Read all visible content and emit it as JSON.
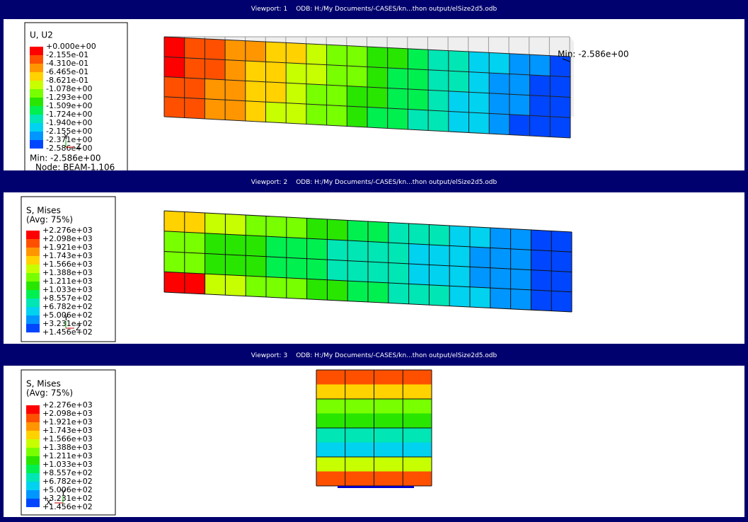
{
  "viewports": [
    {
      "title": "Viewport: 1",
      "odb": "ODB: H:/My Documents/-CASES/kn...thon output/elSize2d5.odb",
      "legend": {
        "title": [
          "U, U2"
        ],
        "labels": [
          "+0.000e+00",
          "-2.155e-01",
          "-4.310e-01",
          "-6.465e-01",
          "-8.621e-01",
          "-1.078e+00",
          "-1.293e+00",
          "-1.509e+00",
          "-1.724e+00",
          "-1.940e+00",
          "-2.155e+00",
          "-2.371e+00",
          "-2.586e+00"
        ],
        "footer": [
          "Min: -2.586e+00",
          "Node: BEAM-1.106"
        ]
      },
      "annotation": "Min: -2.586e+00",
      "triad": [
        "Y",
        "Z"
      ]
    },
    {
      "title": "Viewport: 2",
      "odb": "ODB: H:/My Documents/-CASES/kn...thon output/elSize2d5.odb",
      "legend": {
        "title": [
          "S, Mises",
          "(Avg: 75%)"
        ],
        "labels": [
          "+2.276e+03",
          "+2.098e+03",
          "+1.921e+03",
          "+1.743e+03",
          "+1.566e+03",
          "+1.388e+03",
          "+1.211e+03",
          "+1.033e+03",
          "+8.557e+02",
          "+6.782e+02",
          "+5.006e+02",
          "+3.231e+02",
          "+1.456e+02"
        ],
        "footer": []
      },
      "triad": [
        "Y",
        "Z"
      ]
    },
    {
      "title": "Viewport: 3",
      "odb": "ODB: H:/My Documents/-CASES/kn...thon output/elSize2d5.odb",
      "legend": {
        "title": [
          "S, Mises",
          "(Avg: 75%)"
        ],
        "labels": [
          "+2.276e+03",
          "+2.098e+03",
          "+1.921e+03",
          "+1.743e+03",
          "+1.566e+03",
          "+1.388e+03",
          "+1.211e+03",
          "+1.033e+03",
          "+8.557e+02",
          "+6.782e+02",
          "+5.006e+02",
          "+3.231e+02",
          "+1.456e+02"
        ],
        "footer": []
      },
      "triad": [
        "Y",
        "X"
      ]
    }
  ]
}
